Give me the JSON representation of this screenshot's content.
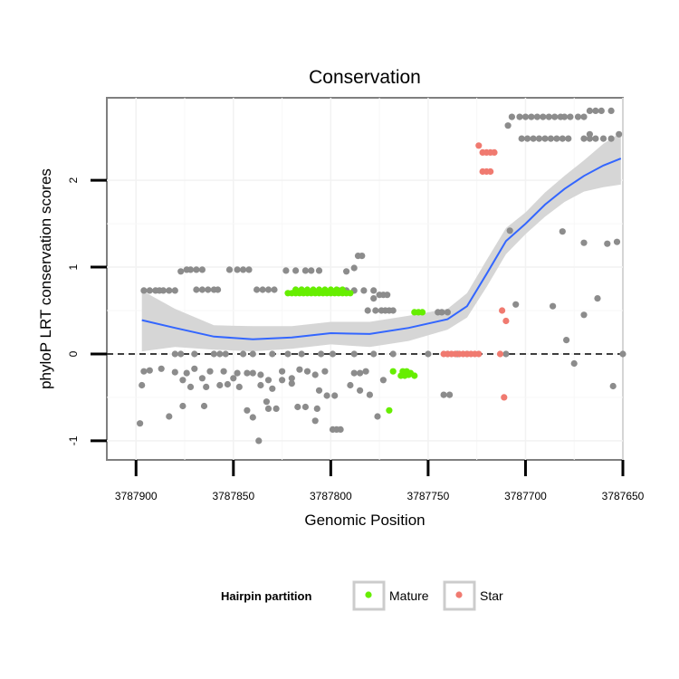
{
  "chart_data": {
    "type": "scatter",
    "title": "Conservation",
    "xlabel": "Genomic Position",
    "ylabel": "phyloP LRT conservation scores",
    "x_reversed": true,
    "xlim": [
      3787915,
      3787650
    ],
    "ylim": [
      -1.22,
      2.95
    ],
    "x_ticks": [
      3787900,
      3787850,
      3787800,
      3787750,
      3787700,
      3787650
    ],
    "x_tick_labels": [
      "3787900",
      "3787850",
      "3787800",
      "3787750",
      "3787700",
      "3787650"
    ],
    "y_ticks": [
      -1,
      0,
      1,
      2
    ],
    "y_tick_labels": [
      "-1",
      "0",
      "1",
      "2"
    ],
    "reference_line": {
      "y": 0,
      "style": "dashed"
    },
    "legend": {
      "title": "Hairpin partition",
      "position": "bottom",
      "entries": [
        {
          "label": "Mature",
          "color": "#66ee00"
        },
        {
          "label": "Star",
          "color": "#f07a70"
        }
      ]
    },
    "colors": {
      "background_points": "#8c8c8c",
      "mature": "#66ee00",
      "star": "#f07a70",
      "smooth_line": "#3366ff",
      "confidence_band": "#d4d4d4"
    },
    "series": [
      {
        "name": "Other",
        "color": "#8c8c8c",
        "points": [
          [
            3787896,
            0.73
          ],
          [
            3787893,
            0.73
          ],
          [
            3787890,
            0.73
          ],
          [
            3787888,
            0.73
          ],
          [
            3787886,
            0.73
          ],
          [
            3787883,
            0.73
          ],
          [
            3787880,
            0.73
          ],
          [
            3787877,
            0.95
          ],
          [
            3787874,
            0.97
          ],
          [
            3787872,
            0.97
          ],
          [
            3787869,
            0.97
          ],
          [
            3787866,
            0.97
          ],
          [
            3787869,
            0.74
          ],
          [
            3787866,
            0.74
          ],
          [
            3787863,
            0.74
          ],
          [
            3787860,
            0.74
          ],
          [
            3787858,
            0.74
          ],
          [
            3787852,
            0.97
          ],
          [
            3787848,
            0.97
          ],
          [
            3787845,
            0.97
          ],
          [
            3787842,
            0.97
          ],
          [
            3787838,
            0.74
          ],
          [
            3787835,
            0.74
          ],
          [
            3787832,
            0.74
          ],
          [
            3787829,
            0.74
          ],
          [
            3787823,
            0.96
          ],
          [
            3787818,
            0.96
          ],
          [
            3787813,
            0.96
          ],
          [
            3787810,
            0.96
          ],
          [
            3787806,
            0.96
          ],
          [
            3787818,
            0.74
          ],
          [
            3787815,
            0.74
          ],
          [
            3787792,
            0.95
          ],
          [
            3787788,
            0.99
          ],
          [
            3787786,
            1.13
          ],
          [
            3787784,
            1.13
          ],
          [
            3787781,
            0.5
          ],
          [
            3787777,
            0.5
          ],
          [
            3787774,
            0.5
          ],
          [
            3787772,
            0.5
          ],
          [
            3787796,
            0.73
          ],
          [
            3787792,
            0.73
          ],
          [
            3787788,
            0.73
          ],
          [
            3787783,
            0.73
          ],
          [
            3787778,
            0.73
          ],
          [
            3787778,
            0.64
          ],
          [
            3787775,
            0.68
          ],
          [
            3787773,
            0.68
          ],
          [
            3787771,
            0.68
          ],
          [
            3787770,
            0.5
          ],
          [
            3787768,
            0.5
          ],
          [
            3787745,
            0.48
          ],
          [
            3787743,
            0.48
          ],
          [
            3787740,
            0.48
          ],
          [
            3787880,
            0.0
          ],
          [
            3787877,
            0.0
          ],
          [
            3787870,
            0.0
          ],
          [
            3787860,
            0.0
          ],
          [
            3787857,
            0.0
          ],
          [
            3787854,
            0.0
          ],
          [
            3787845,
            0.0
          ],
          [
            3787840,
            0.0
          ],
          [
            3787830,
            0.0
          ],
          [
            3787822,
            0.0
          ],
          [
            3787815,
            0.0
          ],
          [
            3787805,
            0.0
          ],
          [
            3787799,
            0.0
          ],
          [
            3787788,
            0.0
          ],
          [
            3787778,
            0.0
          ],
          [
            3787768,
            0.0
          ],
          [
            3787750,
            0.0
          ],
          [
            3787740,
            0.0
          ],
          [
            3787735,
            0.0
          ],
          [
            3787730,
            0.0
          ],
          [
            3787710,
            0.0
          ],
          [
            3787650,
            0.0
          ],
          [
            3787896,
            -0.2
          ],
          [
            3787893,
            -0.19
          ],
          [
            3787887,
            -0.17
          ],
          [
            3787880,
            -0.21
          ],
          [
            3787874,
            -0.22
          ],
          [
            3787870,
            -0.17
          ],
          [
            3787866,
            -0.28
          ],
          [
            3787862,
            -0.2
          ],
          [
            3787855,
            -0.2
          ],
          [
            3787850,
            -0.28
          ],
          [
            3787848,
            -0.22
          ],
          [
            3787843,
            -0.22
          ],
          [
            3787840,
            -0.22
          ],
          [
            3787836,
            -0.24
          ],
          [
            3787832,
            -0.3
          ],
          [
            3787825,
            -0.2
          ],
          [
            3787820,
            -0.28
          ],
          [
            3787816,
            -0.18
          ],
          [
            3787812,
            -0.2
          ],
          [
            3787808,
            -0.24
          ],
          [
            3787803,
            -0.2
          ],
          [
            3787788,
            -0.22
          ],
          [
            3787785,
            -0.22
          ],
          [
            3787782,
            -0.2
          ],
          [
            3787897,
            -0.36
          ],
          [
            3787876,
            -0.3
          ],
          [
            3787872,
            -0.38
          ],
          [
            3787864,
            -0.38
          ],
          [
            3787857,
            -0.36
          ],
          [
            3787853,
            -0.35
          ],
          [
            3787847,
            -0.38
          ],
          [
            3787836,
            -0.36
          ],
          [
            3787830,
            -0.4
          ],
          [
            3787825,
            -0.3
          ],
          [
            3787820,
            -0.34
          ],
          [
            3787806,
            -0.42
          ],
          [
            3787790,
            -0.36
          ],
          [
            3787785,
            -0.42
          ],
          [
            3787780,
            -0.47
          ],
          [
            3787773,
            -0.3
          ],
          [
            3787742,
            -0.47
          ],
          [
            3787739,
            -0.47
          ],
          [
            3787655,
            -0.37
          ],
          [
            3787883,
            -0.72
          ],
          [
            3787876,
            -0.6
          ],
          [
            3787865,
            -0.6
          ],
          [
            3787843,
            -0.65
          ],
          [
            3787840,
            -0.73
          ],
          [
            3787833,
            -0.55
          ],
          [
            3787832,
            -0.63
          ],
          [
            3787828,
            -0.63
          ],
          [
            3787817,
            -0.61
          ],
          [
            3787813,
            -0.61
          ],
          [
            3787807,
            -0.63
          ],
          [
            3787802,
            -0.48
          ],
          [
            3787798,
            -0.48
          ],
          [
            3787776,
            -0.72
          ],
          [
            3787837,
            -1.0
          ],
          [
            3787808,
            -0.77
          ],
          [
            3787799,
            -0.87
          ],
          [
            3787797,
            -0.87
          ],
          [
            3787795,
            -0.87
          ],
          [
            3787898,
            -0.8
          ],
          [
            3787663,
            0.64
          ],
          [
            3787670,
            0.45
          ],
          [
            3787675,
            -0.11
          ],
          [
            3787679,
            0.16
          ],
          [
            3787686,
            0.55
          ],
          [
            3787705,
            0.57
          ],
          [
            3787681,
            1.41
          ],
          [
            3787670,
            1.28
          ],
          [
            3787658,
            1.27
          ],
          [
            3787653,
            1.29
          ],
          [
            3787708,
            1.42
          ],
          [
            3787709,
            2.63
          ],
          [
            3787707,
            2.73
          ],
          [
            3787703,
            2.73
          ],
          [
            3787700,
            2.73
          ],
          [
            3787697,
            2.73
          ],
          [
            3787694,
            2.73
          ],
          [
            3787691,
            2.73
          ],
          [
            3787688,
            2.73
          ],
          [
            3787685,
            2.73
          ],
          [
            3787682,
            2.73
          ],
          [
            3787680,
            2.73
          ],
          [
            3787677,
            2.73
          ],
          [
            3787673,
            2.73
          ],
          [
            3787670,
            2.73
          ],
          [
            3787702,
            2.48
          ],
          [
            3787699,
            2.48
          ],
          [
            3787696,
            2.48
          ],
          [
            3787693,
            2.48
          ],
          [
            3787690,
            2.48
          ],
          [
            3787687,
            2.48
          ],
          [
            3787684,
            2.48
          ],
          [
            3787681,
            2.48
          ],
          [
            3787678,
            2.48
          ],
          [
            3787670,
            2.48
          ],
          [
            3787667,
            2.48
          ],
          [
            3787664,
            2.48
          ],
          [
            3787660,
            2.48
          ],
          [
            3787656,
            2.48
          ],
          [
            3787652,
            2.53
          ],
          [
            3787667,
            2.8
          ],
          [
            3787664,
            2.8
          ],
          [
            3787661,
            2.8
          ],
          [
            3787656,
            2.8
          ],
          [
            3787667,
            2.53
          ]
        ]
      },
      {
        "name": "Mature",
        "color": "#66ee00",
        "points": [
          [
            3787822,
            0.7
          ],
          [
            3787820,
            0.7
          ],
          [
            3787818,
            0.7
          ],
          [
            3787816,
            0.7
          ],
          [
            3787814,
            0.7
          ],
          [
            3787812,
            0.7
          ],
          [
            3787810,
            0.7
          ],
          [
            3787808,
            0.7
          ],
          [
            3787806,
            0.7
          ],
          [
            3787804,
            0.7
          ],
          [
            3787802,
            0.7
          ],
          [
            3787800,
            0.7
          ],
          [
            3787798,
            0.7
          ],
          [
            3787796,
            0.7
          ],
          [
            3787794,
            0.7
          ],
          [
            3787792,
            0.7
          ],
          [
            3787790,
            0.7
          ],
          [
            3787818,
            0.74
          ],
          [
            3787815,
            0.74
          ],
          [
            3787812,
            0.74
          ],
          [
            3787809,
            0.74
          ],
          [
            3787806,
            0.74
          ],
          [
            3787803,
            0.74
          ],
          [
            3787800,
            0.74
          ],
          [
            3787797,
            0.74
          ],
          [
            3787794,
            0.74
          ],
          [
            3787757,
            0.48
          ],
          [
            3787755,
            0.48
          ],
          [
            3787753,
            0.48
          ],
          [
            3787768,
            -0.2
          ],
          [
            3787764,
            -0.25
          ],
          [
            3787763,
            -0.2
          ],
          [
            3787762,
            -0.25
          ],
          [
            3787761,
            -0.2
          ],
          [
            3787760,
            -0.24
          ],
          [
            3787759,
            -0.22
          ],
          [
            3787757,
            -0.25
          ],
          [
            3787770,
            -0.65
          ]
        ]
      },
      {
        "name": "Star",
        "color": "#f07a70",
        "points": [
          [
            3787724,
            2.4
          ],
          [
            3787722,
            2.32
          ],
          [
            3787720,
            2.32
          ],
          [
            3787718,
            2.32
          ],
          [
            3787716,
            2.32
          ],
          [
            3787722,
            2.1
          ],
          [
            3787720,
            2.1
          ],
          [
            3787718,
            2.1
          ],
          [
            3787742,
            0.0
          ],
          [
            3787740,
            0.0
          ],
          [
            3787738,
            0.0
          ],
          [
            3787736,
            0.0
          ],
          [
            3787734,
            0.0
          ],
          [
            3787732,
            0.0
          ],
          [
            3787730,
            0.0
          ],
          [
            3787728,
            0.0
          ],
          [
            3787726,
            0.0
          ],
          [
            3787724,
            0.0
          ],
          [
            3787713,
            0.0
          ],
          [
            3787712,
            0.5
          ],
          [
            3787710,
            0.38
          ],
          [
            3787711,
            -0.5
          ]
        ]
      }
    ],
    "smooth": {
      "method": "loess",
      "points": [
        [
          3787897,
          0.39
        ],
        [
          3787880,
          0.3
        ],
        [
          3787860,
          0.2
        ],
        [
          3787840,
          0.17
        ],
        [
          3787820,
          0.19
        ],
        [
          3787800,
          0.24
        ],
        [
          3787780,
          0.23
        ],
        [
          3787760,
          0.3
        ],
        [
          3787740,
          0.4
        ],
        [
          3787730,
          0.55
        ],
        [
          3787720,
          0.92
        ],
        [
          3787710,
          1.3
        ],
        [
          3787700,
          1.5
        ],
        [
          3787690,
          1.72
        ],
        [
          3787680,
          1.9
        ],
        [
          3787670,
          2.05
        ],
        [
          3787660,
          2.17
        ],
        [
          3787651,
          2.25
        ]
      ],
      "ci_upper": [
        [
          3787897,
          0.73
        ],
        [
          3787880,
          0.52
        ],
        [
          3787860,
          0.33
        ],
        [
          3787840,
          0.32
        ],
        [
          3787820,
          0.32
        ],
        [
          3787800,
          0.37
        ],
        [
          3787780,
          0.37
        ],
        [
          3787760,
          0.44
        ],
        [
          3787740,
          0.52
        ],
        [
          3787730,
          0.7
        ],
        [
          3787720,
          1.08
        ],
        [
          3787710,
          1.45
        ],
        [
          3787700,
          1.63
        ],
        [
          3787690,
          1.86
        ],
        [
          3787680,
          2.05
        ],
        [
          3787670,
          2.23
        ],
        [
          3787660,
          2.42
        ],
        [
          3787651,
          2.55
        ]
      ],
      "ci_lower": [
        [
          3787897,
          0.03
        ],
        [
          3787880,
          0.08
        ],
        [
          3787860,
          0.05
        ],
        [
          3787840,
          0.03
        ],
        [
          3787820,
          0.06
        ],
        [
          3787800,
          0.11
        ],
        [
          3787780,
          0.08
        ],
        [
          3787760,
          0.15
        ],
        [
          3787740,
          0.28
        ],
        [
          3787730,
          0.42
        ],
        [
          3787720,
          0.77
        ],
        [
          3787710,
          1.15
        ],
        [
          3787700,
          1.38
        ],
        [
          3787690,
          1.58
        ],
        [
          3787680,
          1.75
        ],
        [
          3787670,
          1.87
        ],
        [
          3787660,
          1.92
        ],
        [
          3787651,
          1.95
        ]
      ]
    }
  }
}
